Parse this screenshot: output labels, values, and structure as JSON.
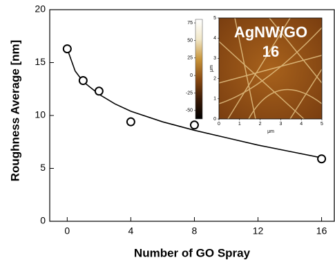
{
  "chart_data": {
    "type": "scatter",
    "xlabel": "Number of GO Spray",
    "ylabel": "Roughness Average [nm]",
    "x": [
      0,
      1,
      2,
      4,
      8,
      16
    ],
    "values": [
      16.3,
      13.3,
      12.3,
      9.4,
      9.1,
      5.9
    ],
    "fit": {
      "x": [
        0,
        0.5,
        1,
        2,
        3,
        4,
        6,
        8,
        10,
        12,
        14,
        16
      ],
      "values": [
        16.3,
        14.2,
        13.2,
        12.0,
        11.1,
        10.4,
        9.4,
        8.6,
        7.9,
        7.2,
        6.6,
        6.0
      ]
    },
    "xlim": [
      -1.1,
      16.8
    ],
    "ylim": [
      0,
      20
    ],
    "xticks": [
      0,
      4,
      8,
      12,
      16
    ],
    "yticks": [
      0,
      5,
      10,
      15,
      20
    ],
    "color": "#000000",
    "inset": {
      "label": [
        "AgNW/GO",
        "16"
      ],
      "colorbar_lim": [
        -62,
        80
      ],
      "colorbar_ticks": [
        75,
        50,
        25,
        0,
        -25,
        -50
      ],
      "xlim": [
        0,
        5
      ],
      "ylim": [
        0,
        5
      ],
      "xticks": [
        0,
        1,
        2,
        3,
        4,
        5
      ],
      "yticks": [
        0,
        1,
        2,
        3,
        4,
        5
      ],
      "xlabel": "μm",
      "ylabel": "μm"
    }
  }
}
